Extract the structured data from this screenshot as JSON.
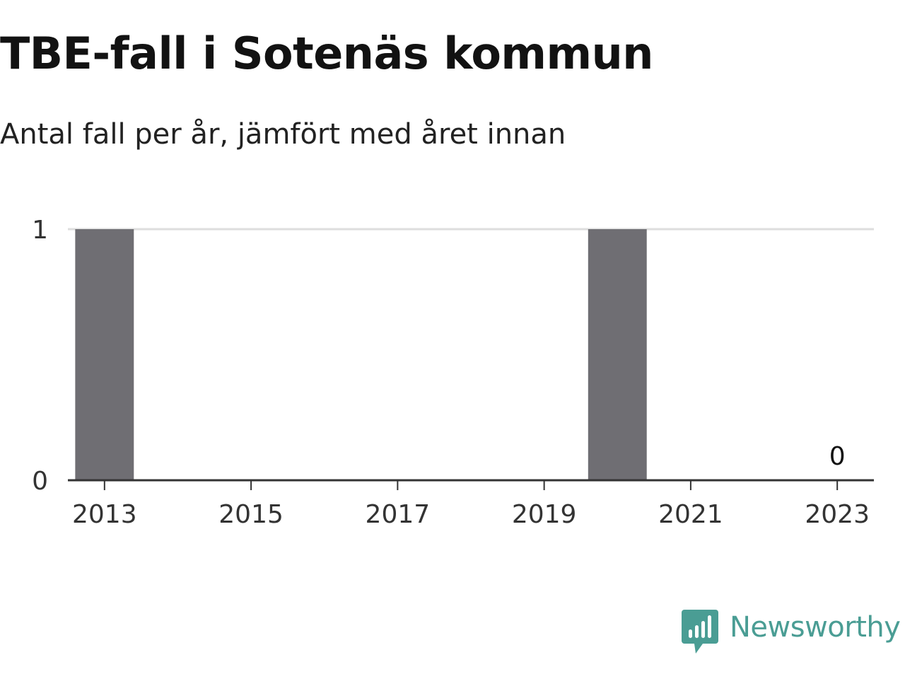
{
  "chart_data": {
    "type": "bar",
    "title": "TBE-fall i Sotenäs kommun",
    "subtitle": "Antal fall per år, jämfört med året innan",
    "xlabel": "",
    "ylabel": "",
    "x": [
      2013,
      2014,
      2015,
      2016,
      2017,
      2018,
      2019,
      2020,
      2021,
      2022,
      2023
    ],
    "values": [
      1,
      0,
      0,
      0,
      0,
      0,
      0,
      1,
      0,
      0,
      0
    ],
    "xlim": [
      2012.5,
      2023.5
    ],
    "ylim": [
      0,
      1
    ],
    "x_ticks": [
      2013,
      2015,
      2017,
      2019,
      2021,
      2023
    ],
    "y_ticks": [
      0,
      1
    ],
    "grid": true,
    "bar_color": "#6f6e73",
    "annotations": [
      {
        "x": 2023,
        "y": 0,
        "text": "0"
      }
    ]
  },
  "brand": {
    "name": "Newsworthy",
    "color": "#4a9d94",
    "icon": "newsworthy-logo-icon"
  }
}
